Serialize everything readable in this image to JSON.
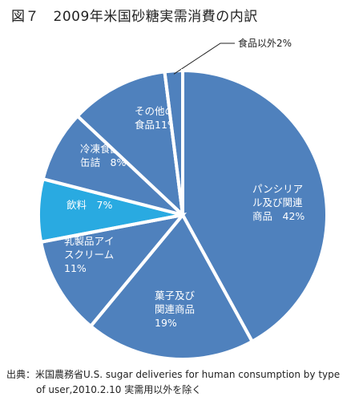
{
  "title": "図７　2009年米国砂糖実需消費の内訳",
  "chart_data": {
    "type": "pie",
    "title": "図７　2009年米国砂糖実需消費の内訳",
    "start_angle_deg": 0,
    "direction": "clockwise",
    "slices": [
      {
        "label_lines": [
          "パンシリア",
          "ル及び関連",
          "商品　42%"
        ],
        "value": 42,
        "color": "#4f81bd"
      },
      {
        "label_lines": [
          "菓子及び",
          "関連商品",
          "19%"
        ],
        "value": 19,
        "color": "#4f81bd"
      },
      {
        "label_lines": [
          "乳製品アイ",
          "スクリーム",
          "11%"
        ],
        "value": 11,
        "color": "#4f81bd"
      },
      {
        "label_lines": [
          "飲料　7%"
        ],
        "value": 7,
        "color": "#29aae1"
      },
      {
        "label_lines": [
          "冷凍食品",
          "缶詰　8%"
        ],
        "value": 8,
        "color": "#4f81bd"
      },
      {
        "label_lines": [
          "その他の",
          "食品11%"
        ],
        "value": 11,
        "color": "#4f81bd"
      },
      {
        "label_lines": [
          "食品以外2%"
        ],
        "value": 2,
        "color": "#4f81bd",
        "external_label": true
      }
    ]
  },
  "source": {
    "line1": "出典：米国農務省U.S. sugar deliveries for human consumption by type",
    "line2": "of user,2010.2.10 実需用以外を除く"
  }
}
